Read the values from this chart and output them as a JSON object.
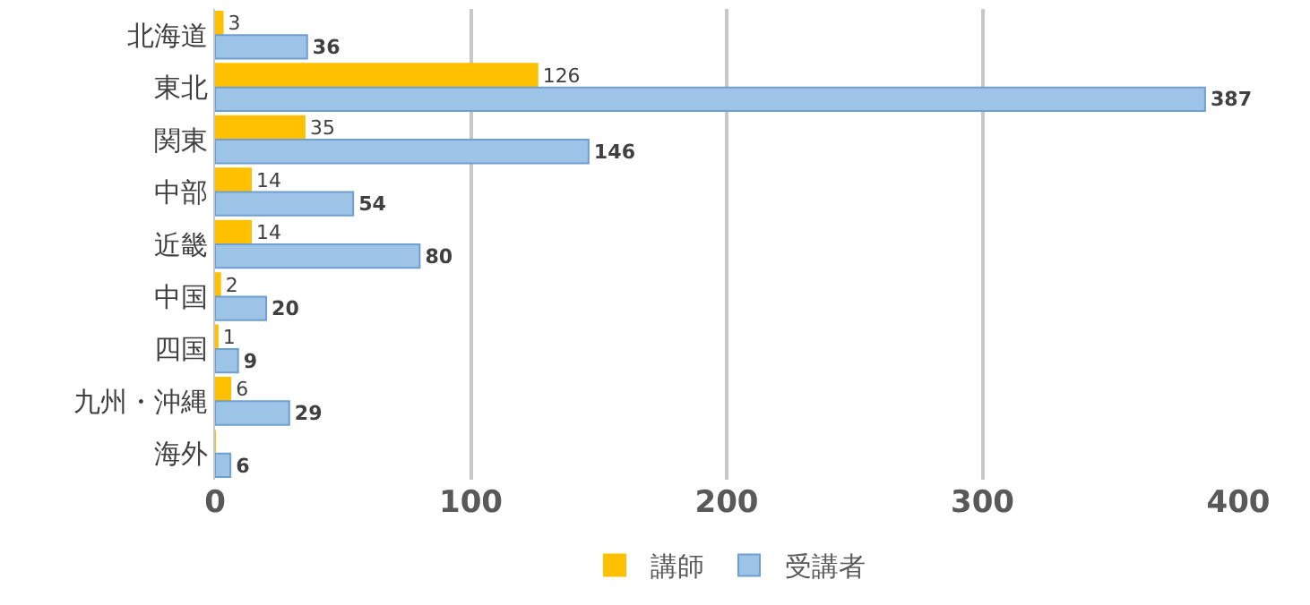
{
  "chart_data": {
    "type": "bar",
    "orientation": "horizontal",
    "categories": [
      "北海道",
      "東北",
      "関東",
      "中部",
      "近畿",
      "中国",
      "四国",
      "九州・沖縄",
      "海外"
    ],
    "series": [
      {
        "name": "講師",
        "color": "#ffc000",
        "values": [
          3,
          126,
          35,
          14,
          14,
          2,
          1,
          6,
          0
        ],
        "value_labels": [
          "3",
          "126",
          "35",
          "14",
          "14",
          "2",
          "1",
          "6",
          null
        ]
      },
      {
        "name": "受講者",
        "color": "#9dc3e6",
        "values": [
          36,
          387,
          146,
          54,
          80,
          20,
          9,
          29,
          6
        ],
        "value_labels": [
          "36",
          "387",
          "146",
          "54",
          "80",
          "20",
          "9",
          "29",
          "6"
        ]
      }
    ],
    "xlim": [
      0,
      400
    ],
    "xticks": [
      0,
      100,
      200,
      300,
      400
    ],
    "grid": "x",
    "legend": "bottom"
  }
}
